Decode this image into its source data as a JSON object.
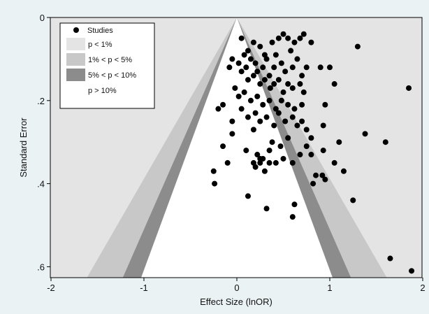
{
  "chart_data": {
    "type": "scatter",
    "title": "",
    "xlabel": "Effect Size (lnOR)",
    "ylabel": "Standard Error",
    "xlim": [
      -2,
      2
    ],
    "ylim": [
      0,
      0.62
    ],
    "y_reversed": true,
    "x_ticks": [
      -2,
      -1,
      0,
      1,
      2
    ],
    "x_tick_labels": [
      "-2",
      "-1",
      "0",
      "1",
      "2"
    ],
    "y_ticks": [
      0,
      0.2,
      0.4,
      0.6
    ],
    "y_tick_labels": [
      "0",
      ".2",
      ".4",
      ".6"
    ],
    "grid": false,
    "legend_position": "top-left",
    "legend": [
      {
        "label": "Studies",
        "kind": "marker",
        "color": "#000000"
      },
      {
        "label": "p < 1%",
        "kind": "region",
        "color": "#e4e4e4"
      },
      {
        "label": "1% < p < 5%",
        "kind": "region",
        "color": "#c8c8c8"
      },
      {
        "label": "5% < p < 10%",
        "kind": "region",
        "color": "#8c8c8c"
      },
      {
        "label": "p > 10%",
        "kind": "region",
        "color": "#ffffff"
      }
    ],
    "contours": {
      "z10": 1.645,
      "z5": 1.96,
      "z1": 2.576
    },
    "colors": {
      "outer": "#e4e4e4",
      "band5": "#c8c8c8",
      "band10": "#8c8c8c",
      "inner": "#ffffff",
      "point": "#000000"
    },
    "series": [
      {
        "name": "Studies",
        "points": [
          [
            0.05,
            0.05
          ],
          [
            0.12,
            0.08
          ],
          [
            0.18,
            0.06
          ],
          [
            0.25,
            0.07
          ],
          [
            0.3,
            0.09
          ],
          [
            0.38,
            0.06
          ],
          [
            0.45,
            0.05
          ],
          [
            0.5,
            0.04
          ],
          [
            0.55,
            0.05
          ],
          [
            0.62,
            0.06
          ],
          [
            0.68,
            0.05
          ],
          [
            0.72,
            0.04
          ],
          [
            0.8,
            0.06
          ],
          [
            1.3,
            0.07
          ],
          [
            -0.05,
            0.1
          ],
          [
            0.02,
            0.11
          ],
          [
            0.08,
            0.09
          ],
          [
            0.1,
            0.12
          ],
          [
            0.15,
            0.1
          ],
          [
            0.2,
            0.11
          ],
          [
            0.22,
            0.13
          ],
          [
            0.28,
            0.12
          ],
          [
            0.32,
            0.1
          ],
          [
            0.35,
            0.14
          ],
          [
            0.4,
            0.12
          ],
          [
            0.42,
            0.09
          ],
          [
            0.48,
            0.11
          ],
          [
            0.52,
            0.13
          ],
          [
            0.58,
            0.08
          ],
          [
            0.6,
            0.12
          ],
          [
            0.65,
            0.1
          ],
          [
            0.7,
            0.14
          ],
          [
            0.75,
            0.12
          ],
          [
            -0.08,
            0.12
          ],
          [
            0.05,
            0.13
          ],
          [
            0.12,
            0.15
          ],
          [
            0.18,
            0.14
          ],
          [
            0.25,
            0.16
          ],
          [
            0.3,
            0.15
          ],
          [
            0.36,
            0.17
          ],
          [
            0.4,
            0.16
          ],
          [
            0.45,
            0.15
          ],
          [
            0.5,
            0.18
          ],
          [
            0.55,
            0.16
          ],
          [
            0.6,
            0.17
          ],
          [
            0.68,
            0.16
          ],
          [
            0.72,
            0.18
          ],
          [
            0.9,
            0.12
          ],
          [
            1.0,
            0.12
          ],
          [
            1.05,
            0.16
          ],
          [
            1.85,
            0.17
          ],
          [
            -0.02,
            0.17
          ],
          [
            0.02,
            0.19
          ],
          [
            0.08,
            0.18
          ],
          [
            0.15,
            0.2
          ],
          [
            0.22,
            0.19
          ],
          [
            0.28,
            0.21
          ],
          [
            0.35,
            0.2
          ],
          [
            0.42,
            0.22
          ],
          [
            0.48,
            0.2
          ],
          [
            0.55,
            0.21
          ],
          [
            0.62,
            0.22
          ],
          [
            0.7,
            0.21
          ],
          [
            0.95,
            0.21
          ],
          [
            0.93,
            0.26
          ],
          [
            -0.2,
            0.22
          ],
          [
            -0.15,
            0.21
          ],
          [
            -0.05,
            0.25
          ],
          [
            0.05,
            0.22
          ],
          [
            0.12,
            0.24
          ],
          [
            0.2,
            0.23
          ],
          [
            0.25,
            0.25
          ],
          [
            0.32,
            0.24
          ],
          [
            0.4,
            0.26
          ],
          [
            0.45,
            0.23
          ],
          [
            0.52,
            0.25
          ],
          [
            0.6,
            0.24
          ],
          [
            0.65,
            0.26
          ],
          [
            0.7,
            0.25
          ],
          [
            0.75,
            0.27
          ],
          [
            0.8,
            0.29
          ],
          [
            1.38,
            0.28
          ],
          [
            -0.05,
            0.28
          ],
          [
            0.18,
            0.27
          ],
          [
            0.38,
            0.3
          ],
          [
            0.47,
            0.31
          ],
          [
            0.55,
            0.29
          ],
          [
            0.68,
            0.33
          ],
          [
            0.75,
            0.31
          ],
          [
            0.8,
            0.33
          ],
          [
            1.1,
            0.3
          ],
          [
            -0.15,
            0.31
          ],
          [
            0.1,
            0.32
          ],
          [
            0.22,
            0.33
          ],
          [
            0.28,
            0.34
          ],
          [
            0.35,
            0.32
          ],
          [
            0.42,
            0.35
          ],
          [
            0.5,
            0.34
          ],
          [
            0.6,
            0.35
          ],
          [
            0.93,
            0.32
          ],
          [
            1.05,
            0.35
          ],
          [
            1.6,
            0.3
          ],
          [
            -0.1,
            0.35
          ],
          [
            0.2,
            0.36
          ],
          [
            0.25,
            0.35
          ],
          [
            0.3,
            0.37
          ],
          [
            0.35,
            0.35
          ],
          [
            0.25,
            0.34
          ],
          [
            0.18,
            0.35
          ],
          [
            -0.25,
            0.37
          ],
          [
            -0.24,
            0.4
          ],
          [
            0.85,
            0.38
          ],
          [
            0.92,
            0.38
          ],
          [
            0.95,
            0.39
          ],
          [
            0.82,
            0.4
          ],
          [
            1.15,
            0.37
          ],
          [
            0.12,
            0.43
          ],
          [
            0.62,
            0.45
          ],
          [
            1.25,
            0.44
          ],
          [
            0.32,
            0.46
          ],
          [
            0.6,
            0.48
          ],
          [
            1.65,
            0.58
          ],
          [
            1.88,
            0.61
          ]
        ]
      }
    ]
  }
}
